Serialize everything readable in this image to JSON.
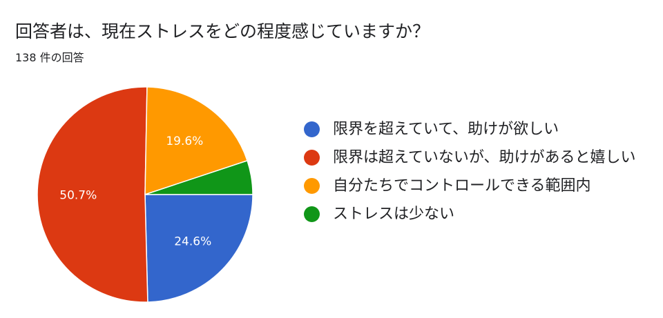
{
  "title": "回答者は、現在ストレスをどの程度感じていますか？",
  "subtitle": "138 件の回答",
  "chart_data": {
    "type": "pie",
    "categories": [
      "限界を超えていて、助けが欲しい",
      "限界は超えていないが、助けがあると嬉しい",
      "自分たちでコントロールできる範囲内",
      "ストレスは少ない"
    ],
    "values": [
      24.6,
      50.7,
      19.6,
      5.1
    ],
    "data_labels": [
      "24.6%",
      "50.7%",
      "19.6%",
      ""
    ],
    "colors": [
      "#3366cc",
      "#dc3912",
      "#ff9900",
      "#109618"
    ],
    "legend_position": "right"
  }
}
